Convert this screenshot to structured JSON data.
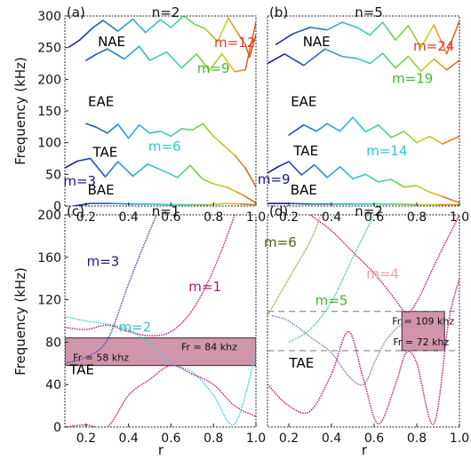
{
  "figure": {
    "ylabel_top": "Frequency (kHz)",
    "ylabel_bottom": "Frequency (kHz)",
    "xlabel": "r"
  },
  "chart_data": [
    {
      "type": "line",
      "panel_label": "(a)",
      "title": "n=2",
      "xlim": [
        0.1,
        1.0
      ],
      "ylim": [
        0,
        300
      ],
      "x_ticks": [
        "0.2",
        "0.4",
        "0.6",
        "0.8",
        "1.0"
      ],
      "y_ticks": [
        "0",
        "50",
        "100",
        "150",
        "200",
        "250",
        "300"
      ],
      "annotations": [
        {
          "text": "NAE",
          "x": 0.32,
          "y": 252,
          "color": "#000000"
        },
        {
          "text": "m=12",
          "x": 0.9,
          "y": 251,
          "color": "#e03a2a"
        },
        {
          "text": "m=9",
          "x": 0.8,
          "y": 210,
          "color": "#3dbb2b"
        },
        {
          "text": "EAE",
          "x": 0.27,
          "y": 158,
          "color": "#000000"
        },
        {
          "text": "m=6",
          "x": 0.57,
          "y": 87,
          "color": "#2ec8c8"
        },
        {
          "text": "TAE",
          "x": 0.29,
          "y": 78,
          "color": "#000000"
        },
        {
          "text": "m=3",
          "x": 0.17,
          "y": 32,
          "color": "#1a1a8c"
        },
        {
          "text": "BAE",
          "x": 0.27,
          "y": 18,
          "color": "#000000"
        }
      ],
      "series": [
        {
          "values_x": [
            0.2,
            0.25,
            0.3,
            0.38,
            0.45,
            0.5,
            0.58,
            0.65,
            0.72,
            0.78,
            0.84,
            0.9,
            0.95,
            1.0
          ],
          "values_y": [
            230,
            240,
            248,
            232,
            252,
            230,
            243,
            218,
            240,
            214,
            240,
            212,
            215,
            290
          ]
        },
        {
          "values_x": [
            0.12,
            0.17,
            0.23,
            0.28,
            0.35,
            0.42,
            0.48,
            0.55,
            0.6,
            0.66,
            0.71,
            0.76,
            0.82,
            0.87,
            0.91,
            0.95,
            0.97,
            1.0
          ],
          "values_y": [
            251,
            262,
            281,
            293,
            276,
            295,
            274,
            294,
            282,
            300,
            287,
            280,
            260,
            297,
            275,
            255,
            235,
            270
          ]
        },
        {
          "values_x": [
            0.2,
            0.25,
            0.3,
            0.35,
            0.4,
            0.45,
            0.5,
            0.55,
            0.6,
            0.65,
            0.7,
            0.75,
            0.8,
            0.85,
            0.9,
            0.95,
            1.0
          ],
          "values_y": [
            130,
            124,
            115,
            129,
            107,
            128,
            115,
            118,
            110,
            122,
            120,
            130,
            110,
            95,
            80,
            60,
            30
          ]
        },
        {
          "values_x": [
            0.1,
            0.16,
            0.22,
            0.29,
            0.35,
            0.42,
            0.49,
            0.56,
            0.63,
            0.69,
            0.75,
            0.8,
            0.86,
            0.91,
            0.95,
            1.0
          ],
          "values_y": [
            60,
            71,
            75,
            46,
            70,
            47,
            66,
            56,
            45,
            64,
            42,
            35,
            30,
            22,
            15,
            5
          ]
        },
        {
          "values_x": [
            0.14,
            0.22,
            0.32,
            0.42,
            0.5,
            0.6,
            0.7,
            0.78,
            0.86,
            0.93,
            1.0
          ],
          "values_y": [
            0,
            4,
            4,
            3,
            3,
            2,
            2,
            2,
            4,
            3,
            2
          ]
        }
      ]
    },
    {
      "type": "line",
      "panel_label": "(b)",
      "title": "n=5",
      "xlim": [
        0.1,
        1.0
      ],
      "ylim": [
        0,
        300
      ],
      "x_ticks": [
        "0.2",
        "0.4",
        "0.6",
        "0.8",
        "1.0"
      ],
      "y_ticks": [],
      "annotations": [
        {
          "text": "NAE",
          "x": 0.33,
          "y": 252,
          "color": "#000000"
        },
        {
          "text": "m=24",
          "x": 0.88,
          "y": 245,
          "color": "#e03a2a"
        },
        {
          "text": "m=19",
          "x": 0.78,
          "y": 194,
          "color": "#3dbb2b"
        },
        {
          "text": "EAE",
          "x": 0.27,
          "y": 158,
          "color": "#000000"
        },
        {
          "text": "TAE",
          "x": 0.28,
          "y": 80,
          "color": "#000000"
        },
        {
          "text": "m=14",
          "x": 0.66,
          "y": 80,
          "color": "#2ec8c8"
        },
        {
          "text": "m=9",
          "x": 0.13,
          "y": 35,
          "color": "#1a1a8c"
        },
        {
          "text": "BAE",
          "x": 0.27,
          "y": 18,
          "color": "#000000"
        }
      ],
      "series": [
        {
          "values_x": [
            0.1,
            0.18,
            0.27,
            0.37,
            0.45,
            0.52,
            0.58,
            0.64,
            0.7,
            0.76,
            0.82,
            0.88,
            0.94,
            1.0
          ],
          "values_y": [
            225,
            240,
            222,
            248,
            236,
            233,
            225,
            241,
            218,
            236,
            213,
            232,
            215,
            230
          ]
        },
        {
          "values_x": [
            0.14,
            0.22,
            0.3,
            0.38,
            0.45,
            0.52,
            0.58,
            0.64,
            0.7,
            0.76,
            0.82,
            0.88,
            0.94,
            1.0
          ],
          "values_y": [
            255,
            272,
            282,
            278,
            290,
            282,
            270,
            290,
            262,
            285,
            250,
            286,
            240,
            292
          ]
        },
        {
          "values_x": [
            0.2,
            0.27,
            0.33,
            0.38,
            0.44,
            0.5,
            0.56,
            0.62,
            0.68,
            0.74,
            0.8,
            0.86,
            0.92,
            1.0
          ],
          "values_y": [
            112,
            128,
            118,
            130,
            118,
            140,
            117,
            128,
            108,
            118,
            100,
            110,
            98,
            110
          ]
        },
        {
          "values_x": [
            0.1,
            0.15,
            0.2,
            0.26,
            0.32,
            0.38,
            0.44,
            0.5,
            0.56,
            0.62,
            0.68,
            0.74,
            0.8,
            0.86,
            0.92,
            1.0
          ],
          "values_y": [
            52,
            62,
            70,
            49,
            65,
            45,
            62,
            43,
            50,
            38,
            42,
            30,
            32,
            22,
            15,
            5
          ]
        },
        {
          "values_x": [
            0.1,
            0.2,
            0.3,
            0.4,
            0.5,
            0.6,
            0.7,
            0.8,
            0.9,
            1.0
          ],
          "values_y": [
            4,
            4,
            3,
            3,
            3,
            3,
            3,
            2,
            2,
            2
          ]
        }
      ]
    },
    {
      "type": "line",
      "panel_label": "(c)",
      "title": "n=1",
      "xlim": [
        0.1,
        1.0
      ],
      "ylim": [
        0,
        200
      ],
      "x_ticks": [
        "0.2",
        "0.4",
        "0.6",
        "0.8",
        "1.0"
      ],
      "y_ticks": [
        "0",
        "40",
        "80",
        "120",
        "160",
        "200"
      ],
      "gap_band": [
        58,
        84
      ],
      "band_labels": [
        "Fr = 84 khz",
        "Fr = 58 khz"
      ],
      "annotations": [
        {
          "text": "m=3",
          "x": 0.28,
          "y": 152,
          "color": "#1a1a8c"
        },
        {
          "text": "m=1",
          "x": 0.76,
          "y": 128,
          "color": "#c0187a"
        },
        {
          "text": "m=2",
          "x": 0.43,
          "y": 90,
          "color": "#2ec8c8"
        },
        {
          "text": "TAE",
          "x": 0.18,
          "y": 50,
          "color": "#000000"
        }
      ],
      "series": [
        {
          "values_x": [
            0.1,
            0.2,
            0.3,
            0.4,
            0.5,
            0.6,
            0.7,
            0.8,
            0.9,
            0.95,
            1.0
          ],
          "values_y": [
            94,
            92,
            96,
            90,
            86,
            90,
            110,
            148,
            200,
            235,
            260
          ]
        },
        {
          "values_x": [
            0.1,
            0.2,
            0.3,
            0.4,
            0.5,
            0.6,
            0.7,
            0.8,
            0.9,
            1.0
          ],
          "values_y": [
            104,
            100,
            97,
            92,
            78,
            60,
            52,
            30,
            3,
            70
          ]
        },
        {
          "values_x": [
            0.1,
            0.2,
            0.3,
            0.4,
            0.5,
            0.6,
            0.7,
            0.8,
            0.9,
            1.0
          ],
          "values_y": [
            60,
            66,
            82,
            135,
            185,
            230,
            260,
            280,
            295,
            300
          ]
        },
        {
          "values_x": [
            0.1,
            0.2,
            0.3,
            0.4,
            0.5,
            0.6,
            0.7,
            0.8,
            0.9,
            1.0
          ],
          "values_y": [
            0,
            2,
            0,
            30,
            45,
            58,
            50,
            40,
            20,
            10
          ]
        }
      ]
    },
    {
      "type": "line",
      "panel_label": "(d)",
      "title": "n=2",
      "xlim": [
        0.1,
        1.0
      ],
      "ylim": [
        0,
        200
      ],
      "x_ticks": [
        "0.2",
        "0.4",
        "0.6",
        "0.8",
        "1.0"
      ],
      "y_ticks": [],
      "gap_band": [
        72,
        109
      ],
      "band_labels": [
        "Fr = 109 khz",
        "Fr = 72 khz"
      ],
      "annotations": [
        {
          "text": "m=6",
          "x": 0.16,
          "y": 170,
          "color": "#5a5a10"
        },
        {
          "text": "m=4",
          "x": 0.64,
          "y": 140,
          "color": "#f0a0a0"
        },
        {
          "text": "m=5",
          "x": 0.4,
          "y": 115,
          "color": "#3dbb2b"
        },
        {
          "text": "TAE",
          "x": 0.26,
          "y": 56,
          "color": "#000000"
        }
      ],
      "series": [
        {
          "values_x": [
            0.1,
            0.2,
            0.3,
            0.4,
            0.5,
            0.6,
            0.7,
            0.75,
            0.8,
            0.9,
            1.0
          ],
          "values_y": [
            250,
            215,
            200,
            185,
            165,
            145,
            120,
            108,
            118,
            160,
            200
          ]
        },
        {
          "values_x": [
            0.2,
            0.3,
            0.4,
            0.5,
            0.55,
            0.6,
            0.65,
            0.7
          ],
          "values_y": [
            80,
            92,
            118,
            160,
            180,
            200,
            220,
            240
          ]
        },
        {
          "values_x": [
            0.12,
            0.2,
            0.3,
            0.4,
            0.48,
            0.55,
            0.6,
            0.65,
            0.7,
            0.75
          ],
          "values_y": [
            105,
            100,
            85,
            70,
            48,
            40,
            60,
            80,
            92,
            100
          ]
        },
        {
          "values_x": [
            0.1,
            0.2,
            0.3,
            0.4,
            0.48,
            0.55,
            0.62,
            0.7,
            0.75,
            0.8,
            0.88,
            0.95,
            1.0
          ],
          "values_y": [
            40,
            20,
            15,
            50,
            90,
            45,
            3,
            40,
            70,
            60,
            3,
            100,
            140
          ]
        },
        {
          "values_x": [
            0.1,
            0.2,
            0.3,
            0.35
          ],
          "values_y": [
            105,
            140,
            175,
            200
          ]
        }
      ]
    }
  ]
}
